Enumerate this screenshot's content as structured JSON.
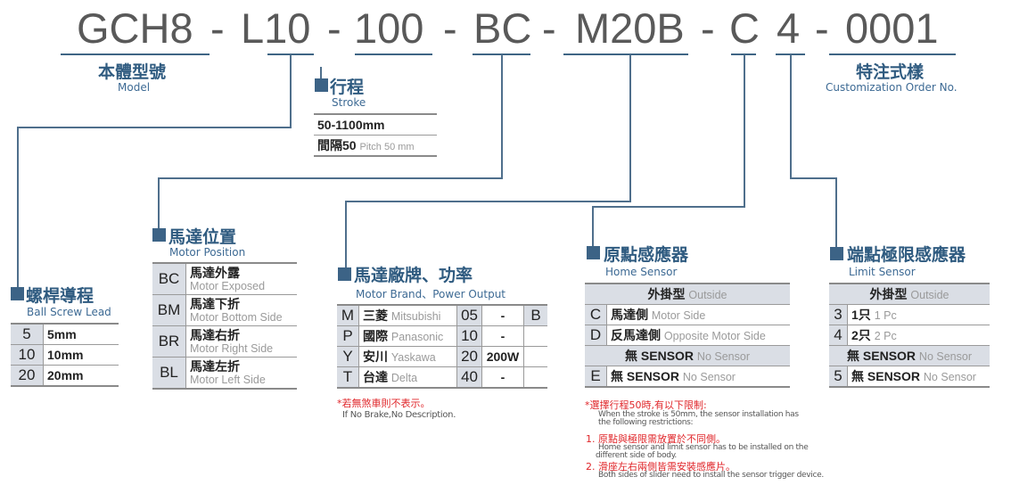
{
  "code": {
    "segments": [
      "GCH8",
      "-",
      "L10",
      "-",
      "100",
      "-",
      "BC",
      "-",
      "M20B",
      "-",
      "C",
      "4",
      "-",
      "0001"
    ]
  },
  "model": {
    "zh": "本體型號",
    "en": "Model"
  },
  "custom": {
    "zh": "特注式樣",
    "en": "Customization Order No."
  },
  "stroke": {
    "zh": "行程",
    "en": "Stroke",
    "rows": [
      "50-1100mm"
    ],
    "pitch_zh": "間隔50",
    "pitch_en": "Pitch 50 mm"
  },
  "lead": {
    "zh": "螺桿導程",
    "en": "Ball Screw Lead",
    "rows": [
      {
        "code": "5",
        "val": "5mm"
      },
      {
        "code": "10",
        "val": "10mm"
      },
      {
        "code": "20",
        "val": "20mm"
      }
    ]
  },
  "position": {
    "zh": "馬達位置",
    "en": "Motor Position",
    "rows": [
      {
        "code": "BC",
        "zh": "馬達外露",
        "en": "Motor Exposed"
      },
      {
        "code": "BM",
        "zh": "馬達下折",
        "en": "Motor Bottom Side"
      },
      {
        "code": "BR",
        "zh": "馬達右折",
        "en": "Motor Right Side"
      },
      {
        "code": "BL",
        "zh": "馬達左折",
        "en": "Motor Left Side"
      }
    ]
  },
  "brand": {
    "zh": "馬達廠牌、功率",
    "en": "Motor Brand、Power Output",
    "rows": [
      {
        "code": "M",
        "zh": "三菱",
        "en": "Mitsubishi",
        "p": "05",
        "w": "-"
      },
      {
        "code": "P",
        "zh": "國際",
        "en": "Panasonic",
        "p": "10",
        "w": "-"
      },
      {
        "code": "Y",
        "zh": "安川",
        "en": "Yaskawa",
        "p": "20",
        "w": "200W"
      },
      {
        "code": "T",
        "zh": "台達",
        "en": "Delta",
        "p": "40",
        "w": "-"
      }
    ],
    "brake": "B",
    "note_zh": "*若無煞車則不表示。",
    "note_en": "If No Brake,No Description."
  },
  "home": {
    "zh": "原點感應器",
    "en": "Home Sensor",
    "outside_zh": "外掛型",
    "outside_en": "Outside",
    "rows": [
      {
        "code": "C",
        "zh": "馬達側",
        "en": "Motor Side"
      },
      {
        "code": "D",
        "zh": "反馬達側",
        "en": "Opposite Motor Side"
      }
    ],
    "none_zh": "無 SENSOR",
    "none_en": "No Sensor",
    "e_code": "E",
    "e_zh": "無 SENSOR",
    "e_en": "No Sensor"
  },
  "limit": {
    "zh": "端點極限感應器",
    "en": "Limit Sensor",
    "outside_zh": "外掛型",
    "outside_en": "Outside",
    "rows": [
      {
        "code": "3",
        "zh": "1只",
        "en": "1 Pc"
      },
      {
        "code": "4",
        "zh": "2只",
        "en": "2 Pc"
      }
    ],
    "none_zh": "無 SENSOR",
    "none_en": "No Sensor",
    "five_code": "5",
    "five_zh": "無 SENSOR",
    "five_en": "No Sensor"
  },
  "notes": {
    "title_zh": "*選擇行程50時,有以下限制:",
    "title_en1": "When the stroke is 50mm, the sensor installation has",
    "title_en2": "the following restrictions:",
    "n1_zh": "1. 原點與極限需放置於不同側。",
    "n1_en1": "Home sensor and limit sensor has to be installed on the",
    "n1_en2": "different side of body.",
    "n2_zh": "2. 滑座左右兩側皆需安裝感應片。",
    "n2_en": "Both sides of slider need to install the sensor trigger device."
  },
  "colors": {
    "accent": "#3c6386",
    "text_blue": "#3d6a94",
    "red": "#e0262a",
    "cell_bg": "#dadee5"
  }
}
